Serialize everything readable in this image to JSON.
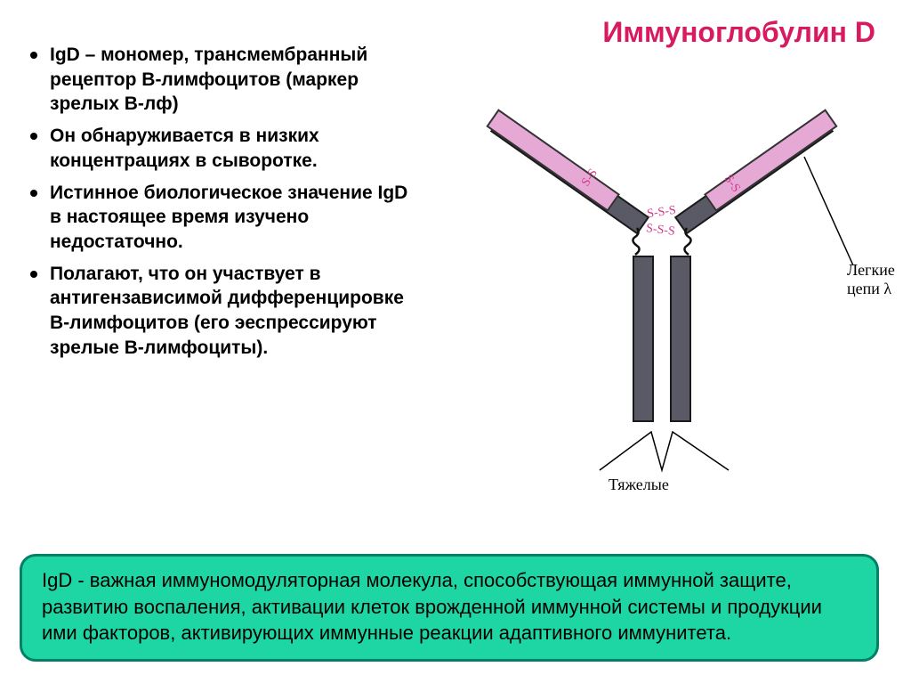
{
  "title": {
    "text": "Иммуноглобулин D",
    "color": "#d81b60",
    "fontsize": 32
  },
  "bullets": {
    "fontsize": 21,
    "items": [
      "IgD – мономер, трансмембранный рецептор В-лимфоцитов (маркер зрелых В-лф)",
      "Он обнаруживается в низких концентрациях в сыворотке.",
      "Истинное биологическое значение IgD в настоящее время изучено недостаточно.",
      "Полагают, что он участвует в антигензависимой дифференцировке В-лимфоцитов (его эеспрессируют зрелые В-лимфоциты)."
    ]
  },
  "summary": {
    "text": "IgD - важная иммуномодуляторная молекула, способствующая иммунной защите, развитию воспаления, активации клеток врожденной иммунной системы и продукции ими факторов, активирующих иммунные реакции адаптивного иммунитета.",
    "bg": "#1dd6a3",
    "border": "#008066",
    "fontsize": 22,
    "color": "#000000"
  },
  "diagram": {
    "colors": {
      "heavy_fill": "#5a5a66",
      "heavy_stroke": "#1a1a1a",
      "light_fill": "#e6a9d6",
      "light_stroke": "#333333",
      "ss_text": "#d43a8a",
      "hinge": "#111111",
      "label_line": "#000000",
      "bg": "#ffffff"
    },
    "labels": {
      "light": "Легкие\nцепи λ",
      "heavy": "Тяжелые",
      "ss": [
        "S-S",
        "S-S",
        "S-S",
        "S-S"
      ]
    },
    "fontsize_labels": 18,
    "fontsize_ss": 14,
    "chain_width": 22,
    "arm_length": 200,
    "stem_length": 185
  }
}
